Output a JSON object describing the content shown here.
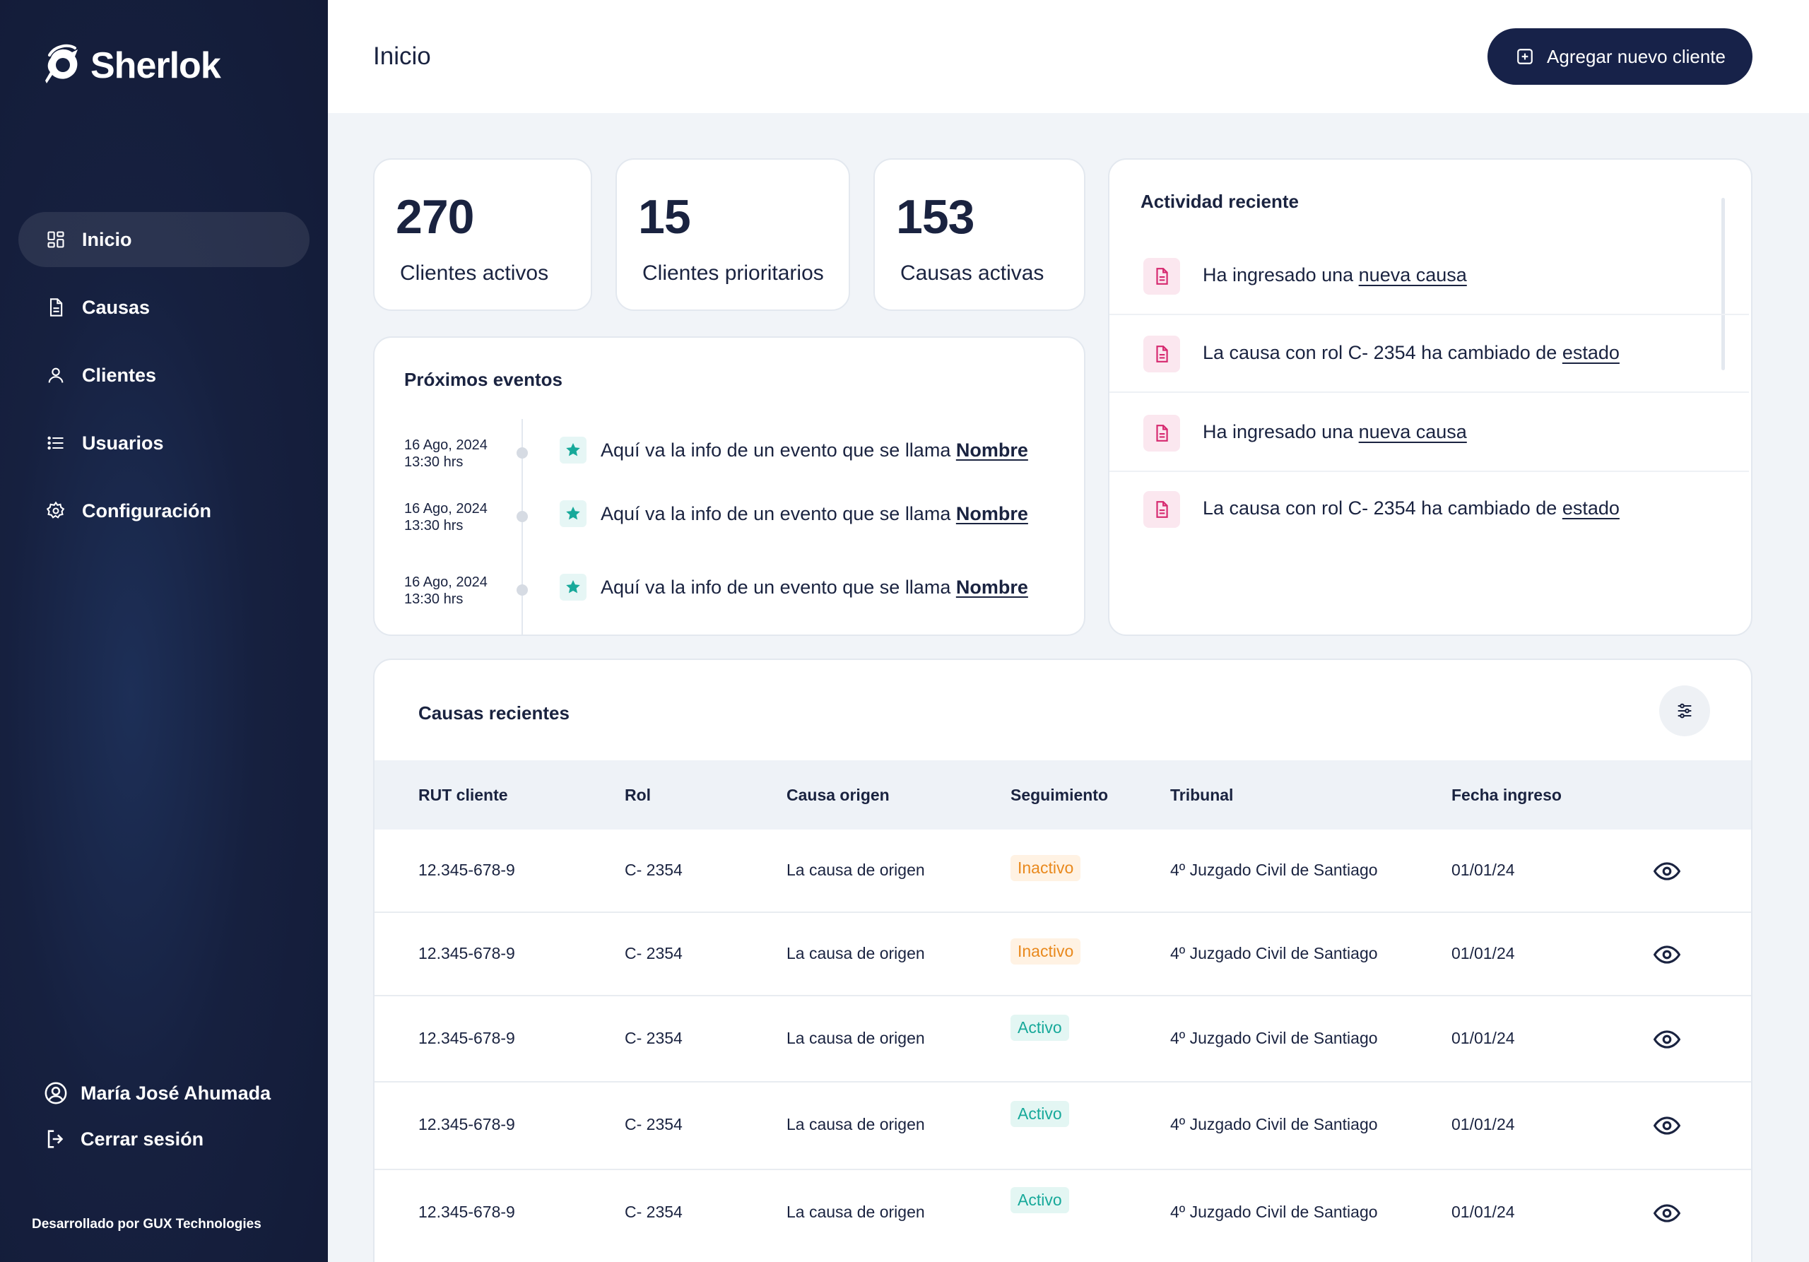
{
  "brand": {
    "name": "Sherlok"
  },
  "sidebar": {
    "items": [
      {
        "label": "Inicio",
        "icon": "dashboard-icon",
        "active": true
      },
      {
        "label": "Causas",
        "icon": "document-icon",
        "active": false
      },
      {
        "label": "Clientes",
        "icon": "user-icon",
        "active": false
      },
      {
        "label": "Usuarios",
        "icon": "list-icon",
        "active": false
      },
      {
        "label": "Configuración",
        "icon": "gear-icon",
        "active": false
      }
    ],
    "user_name": "María José Ahumada",
    "logout_label": "Cerrar sesión",
    "credit": "Desarrollado por GUX Technologies"
  },
  "header": {
    "title": "Inicio",
    "add_button_label": "Agregar nuevo cliente"
  },
  "stats": [
    {
      "value": "270",
      "label": "Clientes activos"
    },
    {
      "value": "15",
      "label": "Clientes prioritarios"
    },
    {
      "value": "153",
      "label": "Causas activas"
    }
  ],
  "events": {
    "title": "Próximos eventos",
    "items": [
      {
        "date": "16 Ago, 2024",
        "time": "13:30 hrs",
        "text": "Aquí va la info de un evento que se llama ",
        "link": "Nombre"
      },
      {
        "date": "16 Ago, 2024",
        "time": "13:30 hrs",
        "text": "Aquí va la info de un evento que se llama ",
        "link": "Nombre"
      },
      {
        "date": "16 Ago, 2024",
        "time": "13:30 hrs",
        "text": "Aquí va la info de un evento que se llama ",
        "link": "Nombre"
      }
    ]
  },
  "activity": {
    "title": "Actividad reciente",
    "items": [
      {
        "text": "Ha ingresado una ",
        "link": "nueva causa"
      },
      {
        "text": "La causa con rol C- 2354 ha cambiado de ",
        "link": "estado"
      },
      {
        "text": "Ha ingresado una ",
        "link": "nueva causa"
      },
      {
        "text": "La causa con rol C- 2354 ha cambiado de ",
        "link": "estado"
      }
    ]
  },
  "table": {
    "title": "Causas recientes",
    "columns": [
      "RUT cliente",
      "Rol",
      "Causa origen",
      "Seguimiento",
      "Tribunal",
      "Fecha ingreso"
    ],
    "rows": [
      {
        "rut": "12.345-678-9",
        "rol": "C- 2354",
        "origen": "La causa de origen",
        "seguimiento": "Inactivo",
        "status": "inactive",
        "tribunal": "4º Juzgado Civil de Santiago",
        "fecha": "01/01/24"
      },
      {
        "rut": "12.345-678-9",
        "rol": "C- 2354",
        "origen": "La causa de origen",
        "seguimiento": "Inactivo",
        "status": "inactive",
        "tribunal": "4º Juzgado Civil de Santiago",
        "fecha": "01/01/24"
      },
      {
        "rut": "12.345-678-9",
        "rol": "C- 2354",
        "origen": "La causa de origen",
        "seguimiento": "Activo",
        "status": "active",
        "tribunal": "4º Juzgado Civil de Santiago",
        "fecha": "01/01/24"
      },
      {
        "rut": "12.345-678-9",
        "rol": "C- 2354",
        "origen": "La causa de origen",
        "seguimiento": "Activo",
        "status": "active",
        "tribunal": "4º Juzgado Civil de Santiago",
        "fecha": "01/01/24"
      },
      {
        "rut": "12.345-678-9",
        "rol": "C- 2354",
        "origen": "La causa de origen",
        "seguimiento": "Activo",
        "status": "active",
        "tribunal": "4º Juzgado Civil de Santiago",
        "fecha": "01/01/24"
      }
    ]
  },
  "colors": {
    "sidebar_bg": "#16203f",
    "primary": "#172249",
    "inactive_badge": "#e9891d",
    "active_badge": "#17a99a",
    "activity_icon": "#d6286f",
    "event_star": "#17a99a"
  }
}
